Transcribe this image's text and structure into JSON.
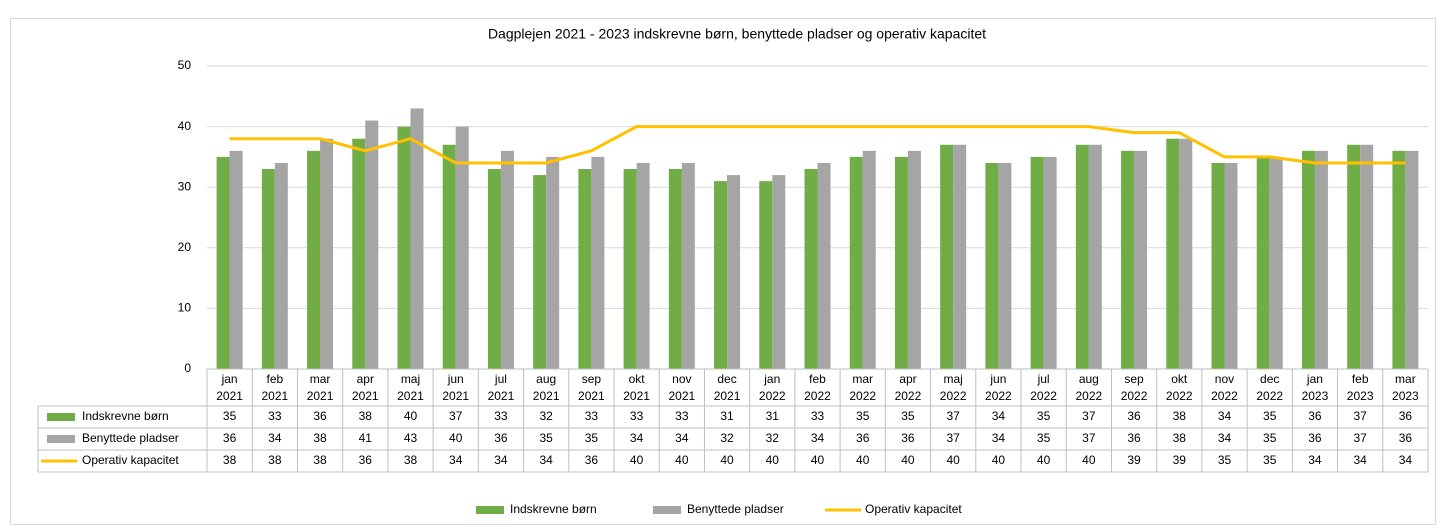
{
  "chart_data": {
    "type": "bar_line_table",
    "title": "Dagplejen 2021 - 2023 indskrevne børn, benyttede pladser og operativ kapacitet",
    "categories": [
      "jan 2021",
      "feb 2021",
      "mar 2021",
      "apr 2021",
      "maj 2021",
      "jun 2021",
      "jul 2021",
      "aug 2021",
      "sep 2021",
      "okt 2021",
      "nov 2021",
      "dec 2021",
      "jan 2022",
      "feb 2022",
      "mar 2022",
      "apr 2022",
      "maj 2022",
      "jun 2022",
      "jul 2022",
      "aug 2022",
      "sep 2022",
      "okt 2022",
      "nov 2022",
      "dec 2022",
      "jan 2023",
      "feb 2023",
      "mar 2023"
    ],
    "series": [
      {
        "name": "Indskrevne børn",
        "kind": "bar",
        "color": "#70ad47",
        "values": [
          35,
          33,
          36,
          38,
          40,
          37,
          33,
          32,
          33,
          33,
          33,
          31,
          31,
          33,
          35,
          35,
          37,
          34,
          35,
          37,
          36,
          38,
          34,
          35,
          36,
          37,
          36
        ]
      },
      {
        "name": "Benyttede pladser",
        "kind": "bar",
        "color": "#a5a5a5",
        "values": [
          36,
          34,
          38,
          41,
          43,
          40,
          36,
          35,
          35,
          34,
          34,
          32,
          32,
          34,
          36,
          36,
          37,
          34,
          35,
          37,
          36,
          38,
          34,
          35,
          36,
          37,
          36
        ]
      },
      {
        "name": "Operativ kapacitet",
        "kind": "line",
        "color": "#ffc000",
        "values": [
          38,
          38,
          38,
          36,
          38,
          34,
          34,
          34,
          36,
          40,
          40,
          40,
          40,
          40,
          40,
          40,
          40,
          40,
          40,
          40,
          39,
          39,
          35,
          35,
          34,
          34,
          34
        ]
      }
    ],
    "ylim": [
      0,
      50
    ],
    "yticks": [
      0,
      10,
      20,
      30,
      40,
      50
    ],
    "grid": true,
    "legend": "bottom"
  }
}
